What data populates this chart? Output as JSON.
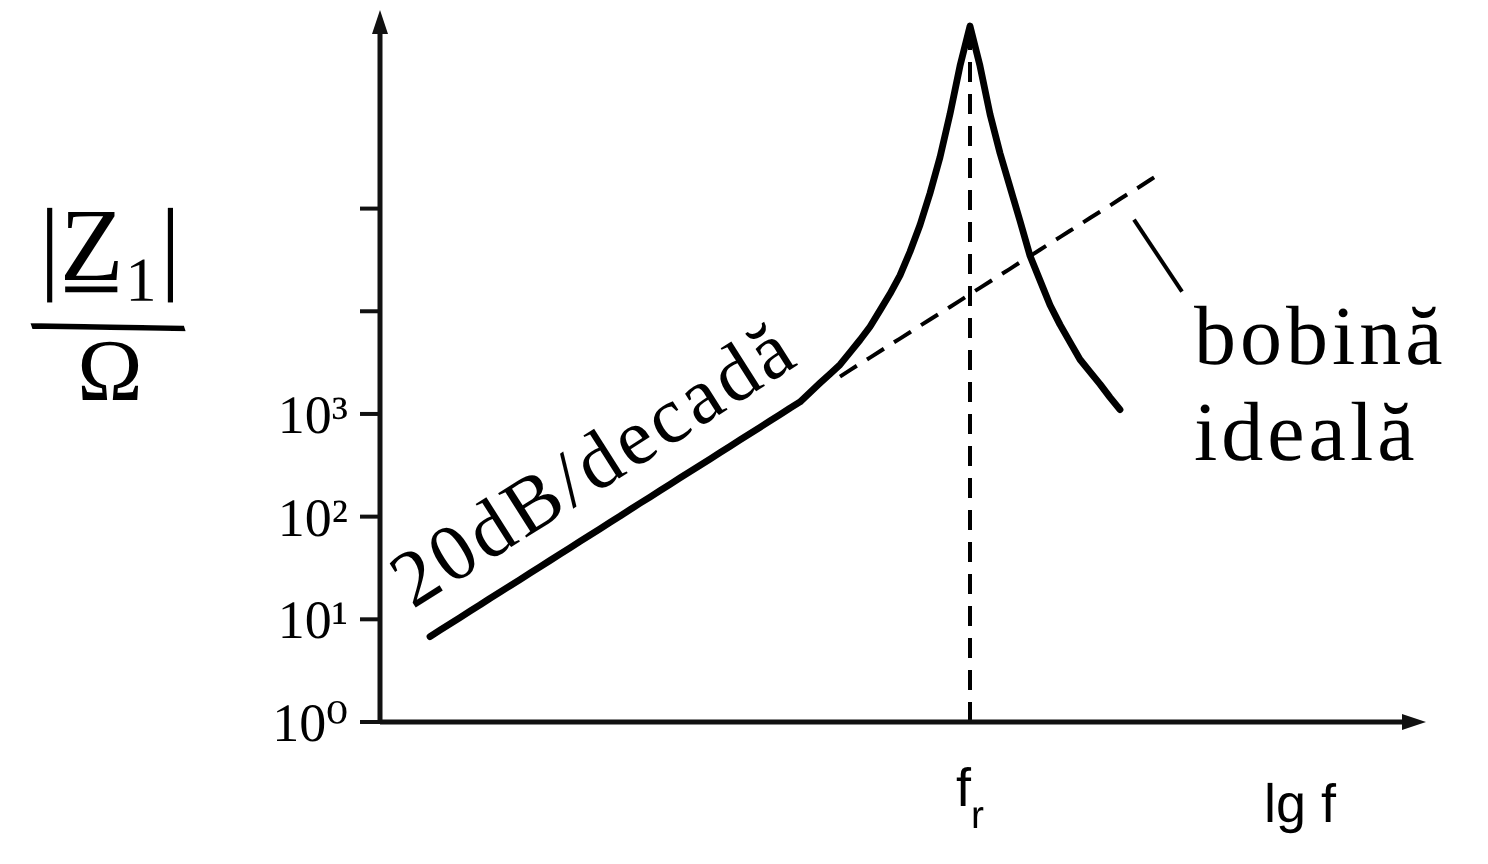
{
  "chart_data": {
    "type": "line",
    "xlabel": "lg f",
    "ylabel": "|Z̲₁|/Ω",
    "categories": [
      null,
      null,
      null,
      null,
      null,
      null,
      null,
      null,
      null,
      null,
      null,
      null,
      null,
      null,
      null,
      null,
      null,
      null,
      null,
      null,
      null,
      null,
      null,
      null,
      null,
      null,
      null,
      null,
      null,
      null,
      null,
      null,
      null,
      null,
      null,
      null,
      null,
      null,
      null,
      null,
      null,
      null,
      null,
      null,
      null,
      null,
      null,
      null,
      null,
      null,
      null,
      null,
      null,
      null,
      null,
      null,
      null,
      null,
      null,
      "f$_{r}$",
      null,
      null,
      null,
      null,
      null,
      null,
      null,
      null,
      null,
      null,
      null,
      null,
      null,
      null,
      null,
      null,
      null,
      null,
      null,
      null,
      null,
      null,
      null,
      null,
      null,
      null,
      null,
      null,
      null,
      null,
      null,
      null,
      null,
      null,
      null,
      null,
      null,
      null,
      null,
      null,
      null,
      null,
      null,
      null
    ],
    "series": [
      {
        "color": "#000000",
        "line_style": "solid",
        "values": [
          null,
          null,
          null,
          null,
          null,
          6.79,
          7.83,
          9.03,
          10.4,
          12,
          13.8,
          16,
          18.4,
          21.2,
          24.4,
          28.2,
          32.5,
          37.4,
          43.1,
          49.7,
          57.3,
          66.1,
          76.2,
          87.9,
          101,
          117,
          135,
          155,
          179,
          206,
          238,
          274,
          316,
          364,
          420,
          484,
          558,
          643,
          741,
          855,
          985,
          1140,
          1310,
          1620,
          2000,
          2450,
          3020,
          3980,
          5250,
          7080,
          10200,
          14800,
          22400,
          38000,
          69200,
          141000,
          316000,
          832000,
          2450000,
          6000000,
          2450000,
          832000,
          347000,
          162000,
          75900,
          34700,
          20000,
          11500,
          7410,
          5010,
          3390,
          2570,
          1950,
          1450,
          1100,
          null,
          null,
          null,
          null,
          null,
          null,
          null,
          null,
          null,
          null,
          null,
          null,
          null,
          null,
          null,
          null,
          null,
          null,
          null,
          null,
          null,
          null,
          null,
          null,
          null,
          null,
          null,
          null,
          null
        ]
      },
      {
        "name": "bobină ideală",
        "color": "#000000",
        "line_style": "dashed",
        "values": [
          null,
          null,
          null,
          null,
          null,
          null,
          null,
          null,
          null,
          null,
          null,
          null,
          null,
          null,
          null,
          null,
          null,
          null,
          null,
          null,
          null,
          null,
          null,
          null,
          null,
          null,
          null,
          null,
          null,
          null,
          null,
          null,
          null,
          null,
          null,
          null,
          null,
          null,
          null,
          null,
          null,
          null,
          null,
          null,
          null,
          null,
          2310,
          2670,
          3080,
          3540,
          4080,
          4710,
          5420,
          6250,
          7210,
          8320,
          9570,
          11000,
          12700,
          14700,
          16900,
          19500,
          22500,
          25900,
          29900,
          34400,
          39700,
          45800,
          52700,
          60800,
          70100,
          80900,
          93100,
          107000,
          124000,
          143000,
          164000,
          190000,
          219000,
          null,
          null,
          null,
          null,
          null,
          null,
          null,
          null,
          null,
          null,
          null,
          null,
          null,
          null,
          null,
          null,
          null,
          null,
          null,
          null,
          null,
          null,
          null,
          null,
          null
        ]
      }
    ],
    "ylim": [
      1,
      6000000
    ],
    "yticks": [
      {
        "value": 1,
        "label": "10⁰"
      },
      {
        "value": 10,
        "label": "10¹"
      },
      {
        "value": 100,
        "label": "10²"
      },
      {
        "value": 1000,
        "label": "10³"
      },
      {
        "value": 10000,
        "label": null
      },
      {
        "value": 100000,
        "label": null
      }
    ],
    "log": true,
    "ref_lines": [
      {
        "axis": "x",
        "value": "f$_{r}$",
        "color": "#000000",
        "line_style": "dashed"
      }
    ],
    "annotations": [
      "20dB/decadă"
    ]
  }
}
